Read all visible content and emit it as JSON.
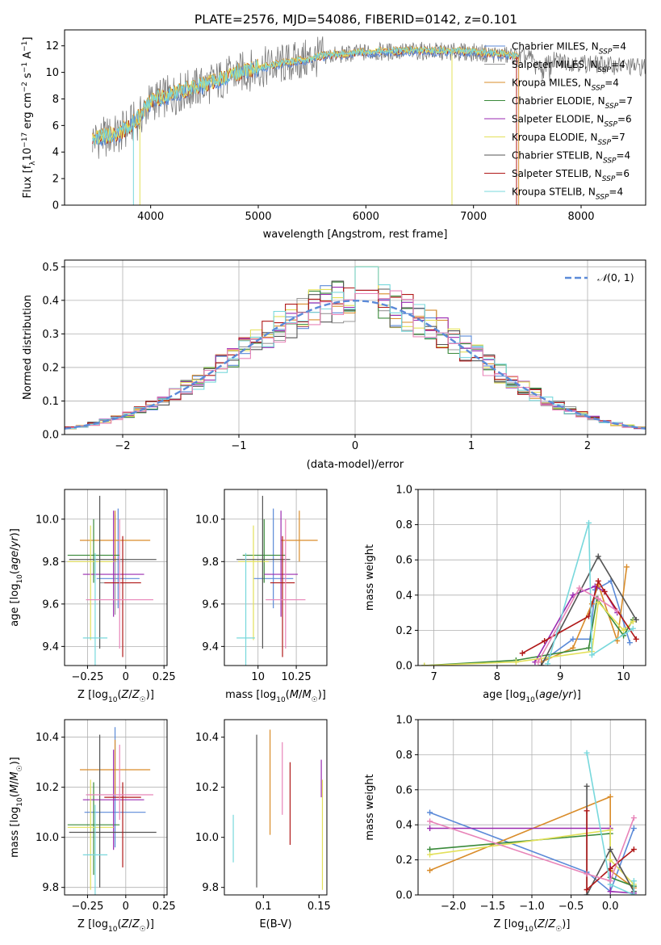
{
  "title": "PLATE=2576, MJD=54086, FIBERID=0142, z=0.101",
  "colors": {
    "Chabrier MILES": "#5b8ad8",
    "Salpeter MILES": "#9a9a9a",
    "Kroupa MILES": "#d98c2a",
    "Chabrier ELODIE": "#3a8a3a",
    "Salpeter ELODIE": "#9a2ab0",
    "Kroupa ELODIE": "#e3e05a",
    "Chabrier STELIB": "#555555",
    "Salpeter STELIB": "#b01818",
    "Kroupa STELIB": "#78d8dc",
    "normal_curve": "#5b8ad8",
    "grid": "#b0b0b0"
  },
  "chart_data": [
    {
      "type": "line",
      "panel": "spectrum",
      "xlabel": "wavelength [Angstrom, rest frame]",
      "ylabel": "Flux [f_λ 10^-17 erg cm^-2 s^-1 A^-1]",
      "xlim": [
        3200,
        8600
      ],
      "ylim": [
        0,
        13.2
      ],
      "xticks": [
        4000,
        5000,
        6000,
        7000,
        8000
      ],
      "yticks": [
        0,
        2,
        4,
        6,
        8,
        10,
        12
      ],
      "grid": false,
      "legend_position": "right",
      "legend": [
        {
          "name": "Chabrier MILES",
          "nssp": 4
        },
        {
          "name": "Salpeter MILES",
          "nssp": 4
        },
        {
          "name": "Kroupa MILES",
          "nssp": 4
        },
        {
          "name": "Chabrier ELODIE",
          "nssp": 7
        },
        {
          "name": "Salpeter ELODIE",
          "nssp": 6
        },
        {
          "name": "Kroupa ELODIE",
          "nssp": 7
        },
        {
          "name": "Chabrier STELIB",
          "nssp": 4
        },
        {
          "name": "Salpeter STELIB",
          "nssp": 6
        },
        {
          "name": "Kroupa STELIB",
          "nssp": 4
        }
      ],
      "continuum": [
        [
          3500,
          5.0
        ],
        [
          3700,
          5.3
        ],
        [
          3900,
          6.6
        ],
        [
          4000,
          7.8
        ],
        [
          4200,
          8.3
        ],
        [
          4500,
          9.0
        ],
        [
          4800,
          9.9
        ],
        [
          5000,
          10.3
        ],
        [
          5300,
          10.7
        ],
        [
          5600,
          11.2
        ],
        [
          6000,
          11.5
        ],
        [
          6500,
          11.6
        ],
        [
          7000,
          11.5
        ],
        [
          7400,
          11.2
        ],
        [
          7700,
          10.9
        ],
        [
          8000,
          10.7
        ],
        [
          8300,
          10.5
        ],
        [
          8600,
          10.4
        ]
      ],
      "data_range": [
        3460,
        8600
      ],
      "model_range": [
        3460,
        7420
      ]
    },
    {
      "type": "step",
      "panel": "residual_histogram",
      "xlabel": "(data-model)/error",
      "ylabel": "Normed distribution",
      "xlim": [
        -2.5,
        2.5
      ],
      "ylim": [
        0,
        0.52
      ],
      "xticks": [
        -2,
        -1,
        0,
        1,
        2
      ],
      "yticks": [
        0.0,
        0.1,
        0.2,
        0.3,
        0.4,
        0.5
      ],
      "grid": true,
      "bin_width": 0.1,
      "legend_position": "top-right",
      "legend": [
        "N(0,1)"
      ],
      "peak_values": [
        0.42,
        0.43,
        0.5
      ]
    },
    {
      "type": "errorbar",
      "panel": "age_vs_Z",
      "xlabel": "Z [log10(Z/Z☉)]",
      "ylabel": "age [log10(age/yr)]",
      "xlim": [
        -0.4,
        0.27
      ],
      "ylim": [
        9.31,
        10.14
      ],
      "xticks": [
        -0.25,
        0.0,
        0.25
      ],
      "yticks": [
        9.4,
        9.6,
        9.8,
        10.0
      ],
      "grid": true,
      "points": [
        {
          "series": "Chabrier MILES",
          "x": -0.05,
          "xerr": [
            0.14,
            0.14
          ],
          "y": 9.72,
          "yerr": [
            0.14,
            0.33
          ]
        },
        {
          "series": "Salpeter MILES",
          "x": -0.07,
          "xerr": [
            0.1,
            0.1
          ],
          "y": 9.7,
          "yerr": [
            0.15,
            0.32
          ]
        },
        {
          "series": "Kroupa MILES",
          "x": -0.07,
          "xerr": [
            0.23,
            0.23
          ],
          "y": 9.9,
          "yerr": [
            0.1,
            0.14
          ]
        },
        {
          "series": "Chabrier ELODIE",
          "x": -0.21,
          "xerr": [
            0.17,
            0.17
          ],
          "y": 9.83,
          "yerr": [
            0.13,
            0.17
          ]
        },
        {
          "series": "Salpeter ELODIE",
          "x": -0.08,
          "xerr": [
            0.2,
            0.2
          ],
          "y": 9.74,
          "yerr": [
            0.2,
            0.3
          ]
        },
        {
          "series": "Kroupa ELODIE",
          "x": -0.23,
          "xerr": [
            0.15,
            0.15
          ],
          "y": 9.8,
          "yerr": [
            0.37,
            0.17
          ]
        },
        {
          "series": "Chabrier STELIB",
          "x": -0.17,
          "xerr": [
            0.2,
            0.37
          ],
          "y": 9.81,
          "yerr": [
            0.42,
            0.3
          ]
        },
        {
          "series": "Salpeter STELIB",
          "x": -0.02,
          "xerr": [
            0.12,
            0.12
          ],
          "y": 9.7,
          "yerr": [
            0.35,
            0.22
          ]
        },
        {
          "series": "Kroupa STELIB",
          "x": -0.2,
          "xerr": [
            0.08,
            0.08
          ],
          "y": 9.44,
          "yerr": [
            0.16,
            0.4
          ]
        },
        {
          "series": "Salpeter pink",
          "x": -0.04,
          "xerr": [
            0.22,
            0.22
          ],
          "y": 9.62,
          "yerr": [
            0.23,
            0.38
          ]
        }
      ]
    },
    {
      "type": "errorbar",
      "panel": "age_vs_mass",
      "xlabel": "mass [log10(M/M☉)]",
      "ylabel": "",
      "xlim": [
        9.78,
        10.45
      ],
      "ylim": [
        9.31,
        10.14
      ],
      "xticks": [
        10.0,
        10.25
      ],
      "yticks": [
        9.4,
        9.6,
        9.8,
        10.0
      ],
      "grid": true,
      "points": [
        {
          "series": "Chabrier MILES",
          "x": 10.1,
          "xerr": [
            0.13,
            0.13
          ],
          "y": 9.72,
          "yerr": [
            0.14,
            0.33
          ]
        },
        {
          "series": "Kroupa MILES",
          "x": 10.27,
          "xerr": [
            0.12,
            0.12
          ],
          "y": 9.9,
          "yerr": [
            0.1,
            0.14
          ]
        },
        {
          "series": "Chabrier ELODIE",
          "x": 10.04,
          "xerr": [
            0.14,
            0.14
          ],
          "y": 9.83,
          "yerr": [
            0.13,
            0.17
          ]
        },
        {
          "series": "Salpeter ELODIE",
          "x": 10.15,
          "xerr": [
            0.11,
            0.11
          ],
          "y": 9.74,
          "yerr": [
            0.2,
            0.3
          ]
        },
        {
          "series": "Kroupa ELODIE",
          "x": 9.97,
          "xerr": [
            0.1,
            0.1
          ],
          "y": 9.8,
          "yerr": [
            0.37,
            0.17
          ]
        },
        {
          "series": "Chabrier STELIB",
          "x": 10.03,
          "xerr": [
            0.17,
            0.18
          ],
          "y": 9.81,
          "yerr": [
            0.42,
            0.3
          ]
        },
        {
          "series": "Salpeter STELIB",
          "x": 10.16,
          "xerr": [
            0.08,
            0.08
          ],
          "y": 9.7,
          "yerr": [
            0.35,
            0.22
          ]
        },
        {
          "series": "Kroupa STELIB",
          "x": 9.92,
          "xerr": [
            0.06,
            0.06
          ],
          "y": 9.44,
          "yerr": [
            0.16,
            0.4
          ]
        },
        {
          "series": "Salpeter pink",
          "x": 10.18,
          "xerr": [
            0.13,
            0.13
          ],
          "y": 9.62,
          "yerr": [
            0.23,
            0.38
          ]
        }
      ]
    },
    {
      "type": "line",
      "panel": "massweight_vs_age",
      "xlabel": "age [log10(age/yr)]",
      "ylabel": "mass weight",
      "xlim": [
        6.75,
        10.35
      ],
      "ylim": [
        0,
        1
      ],
      "xticks": [
        7,
        8,
        9,
        10
      ],
      "yticks": [
        0.0,
        0.2,
        0.4,
        0.6,
        0.8,
        1.0
      ],
      "grid": true,
      "series": [
        {
          "name": "Chabrier MILES",
          "x": [
            8.7,
            9.2,
            9.47,
            9.55,
            9.8,
            10.1
          ],
          "y": [
            0.02,
            0.15,
            0.15,
            0.43,
            0.48,
            0.13
          ]
        },
        {
          "name": "Kroupa MILES",
          "x": [
            8.7,
            9.2,
            9.5,
            9.6,
            9.9,
            10.05
          ],
          "y": [
            0.02,
            0.1,
            0.35,
            0.46,
            0.14,
            0.56
          ]
        },
        {
          "name": "Chabrier ELODIE",
          "x": [
            6.85,
            8.3,
            9.45,
            9.58,
            10.0,
            10.15
          ],
          "y": [
            0.0,
            0.03,
            0.1,
            0.38,
            0.17,
            0.26
          ]
        },
        {
          "name": "Salpeter ELODIE",
          "x": [
            8.6,
            9.2,
            9.55,
            9.7,
            9.9
          ],
          "y": [
            0.02,
            0.4,
            0.45,
            0.42,
            0.3
          ]
        },
        {
          "name": "Kroupa ELODIE",
          "x": [
            6.85,
            8.3,
            9.5,
            9.6,
            10.0,
            10.15
          ],
          "y": [
            0.0,
            0.02,
            0.08,
            0.36,
            0.2,
            0.25
          ]
        },
        {
          "name": "Chabrier STELIB",
          "x": [
            8.7,
            9.6,
            10.2
          ],
          "y": [
            0.0,
            0.62,
            0.26
          ]
        },
        {
          "name": "Salpeter STELIB",
          "x": [
            8.4,
            8.75,
            9.45,
            9.6,
            9.7,
            10.2
          ],
          "y": [
            0.07,
            0.14,
            0.28,
            0.48,
            0.42,
            0.15
          ]
        },
        {
          "name": "Kroupa STELIB",
          "x": [
            8.8,
            9.45,
            9.5,
            10.15
          ],
          "y": [
            0.01,
            0.81,
            0.06,
            0.21
          ]
        },
        {
          "name": "Salpeter pink",
          "x": [
            8.65,
            9.3,
            9.6,
            9.9
          ],
          "y": [
            0.02,
            0.44,
            0.38,
            0.31
          ]
        }
      ]
    },
    {
      "type": "errorbar",
      "panel": "mass_vs_Z",
      "xlabel": "Z [log10(Z/Z☉)]",
      "ylabel": "mass [log10(M/M☉)]",
      "xlim": [
        -0.4,
        0.27
      ],
      "ylim": [
        9.77,
        10.47
      ],
      "xticks": [
        -0.25,
        0.0,
        0.25
      ],
      "yticks": [
        9.8,
        10.0,
        10.2,
        10.4
      ],
      "grid": true,
      "points": [
        {
          "series": "Chabrier MILES",
          "x": -0.07,
          "xerr": [
            0.2,
            0.2
          ],
          "y": 10.1,
          "yerr": [
            0.14,
            0.34
          ]
        },
        {
          "series": "Kroupa MILES",
          "x": -0.07,
          "xerr": [
            0.23,
            0.23
          ],
          "y": 10.27,
          "yerr": [
            0.1,
            0.12
          ]
        },
        {
          "series": "Chabrier ELODIE",
          "x": -0.21,
          "xerr": [
            0.17,
            0.17
          ],
          "y": 10.05,
          "yerr": [
            0.2,
            0.17
          ]
        },
        {
          "series": "Salpeter ELODIE",
          "x": -0.08,
          "xerr": [
            0.2,
            0.2
          ],
          "y": 10.15,
          "yerr": [
            0.2,
            0.2
          ]
        },
        {
          "series": "Kroupa ELODIE",
          "x": -0.23,
          "xerr": [
            0.15,
            0.15
          ],
          "y": 10.04,
          "yerr": [
            0.25,
            0.19
          ]
        },
        {
          "series": "Chabrier STELIB",
          "x": -0.17,
          "xerr": [
            0.2,
            0.37
          ],
          "y": 10.02,
          "yerr": [
            0.22,
            0.39
          ]
        },
        {
          "series": "Salpeter STELIB",
          "x": -0.02,
          "xerr": [
            0.12,
            0.12
          ],
          "y": 10.16,
          "yerr": [
            0.28,
            0.06
          ]
        },
        {
          "series": "Kroupa STELIB",
          "x": -0.2,
          "xerr": [
            0.08,
            0.08
          ],
          "y": 9.93,
          "yerr": [
            0.16,
            0.2
          ]
        },
        {
          "series": "Salpeter pink",
          "x": -0.04,
          "xerr": [
            0.22,
            0.22
          ],
          "y": 10.17,
          "yerr": [
            0.1,
            0.2
          ]
        }
      ]
    },
    {
      "type": "errorbar",
      "panel": "mass_vs_EBV",
      "xlabel": "E(B-V)",
      "ylabel": "",
      "xlim": [
        0.065,
        0.157
      ],
      "ylim": [
        9.77,
        10.47
      ],
      "xticks": [
        0.1,
        0.15
      ],
      "yticks": [
        9.8,
        10.0,
        10.2,
        10.4
      ],
      "grid": false,
      "points": [
        {
          "series": "Kroupa STELIB",
          "x": 0.073,
          "y": 10.0,
          "yerr": [
            0.1,
            0.09
          ]
        },
        {
          "series": "Chabrier STELIB",
          "x": 0.094,
          "y": 10.02,
          "yerr": [
            0.22,
            0.39
          ]
        },
        {
          "series": "Kroupa MILES",
          "x": 0.106,
          "y": 10.22,
          "yerr": [
            0.21,
            0.21
          ]
        },
        {
          "series": "Salpeter pink",
          "x": 0.117,
          "y": 10.23,
          "yerr": [
            0.14,
            0.15
          ]
        },
        {
          "series": "Salpeter STELIB",
          "x": 0.124,
          "y": 10.13,
          "yerr": [
            0.16,
            0.17
          ]
        },
        {
          "series": "Salpeter ELODIE",
          "x": 0.152,
          "y": 10.22,
          "yerr": [
            0.06,
            0.09
          ]
        },
        {
          "series": "Kroupa ELODIE",
          "x": 0.153,
          "y": 10.0,
          "yerr": [
            0.21,
            0.23
          ]
        }
      ]
    },
    {
      "type": "line",
      "panel": "massweight_vs_Z",
      "xlabel": "Z [log10(Z/Z☉)]",
      "ylabel": "mass weight",
      "xlim": [
        -2.45,
        0.45
      ],
      "ylim": [
        0,
        1
      ],
      "xticks": [
        -2.0,
        -1.5,
        -1.0,
        -0.5,
        0.0
      ],
      "yticks": [
        0.0,
        0.2,
        0.4,
        0.6,
        0.8,
        1.0
      ],
      "grid": true,
      "series": [
        {
          "name": "Chabrier MILES",
          "x": [
            -2.3,
            -0.3,
            0.0,
            0.3
          ],
          "y": [
            0.47,
            0.13,
            0.02,
            0.38
          ]
        },
        {
          "name": "Kroupa MILES",
          "x": [
            -2.3,
            0.0,
            0.0,
            0.3
          ],
          "y": [
            0.14,
            0.56,
            0.14,
            0.04
          ]
        },
        {
          "name": "Chabrier ELODIE",
          "x": [
            -2.3,
            0.0,
            0.0,
            0.3
          ],
          "y": [
            0.26,
            0.35,
            0.1,
            0.05
          ]
        },
        {
          "name": "Salpeter ELODIE",
          "x": [
            -2.3,
            0.0,
            0.0,
            0.3
          ],
          "y": [
            0.38,
            0.38,
            0.02,
            0.01
          ]
        },
        {
          "name": "Kroupa ELODIE",
          "x": [
            -2.3,
            0.0,
            0.0,
            0.3
          ],
          "y": [
            0.23,
            0.37,
            0.2,
            0.06
          ]
        },
        {
          "name": "Chabrier STELIB",
          "x": [
            -0.3,
            -0.3,
            0.0,
            0.3
          ],
          "y": [
            0.62,
            0.0,
            0.26,
            0.02
          ]
        },
        {
          "name": "Salpeter STELIB",
          "x": [
            -0.3,
            -0.3,
            0.0,
            0.3
          ],
          "y": [
            0.48,
            0.03,
            0.15,
            0.26
          ]
        },
        {
          "name": "Kroupa STELIB",
          "x": [
            -0.3,
            0.0,
            0.3,
            0.3
          ],
          "y": [
            0.81,
            0.06,
            0.0,
            0.08
          ]
        },
        {
          "name": "Salpeter pink",
          "x": [
            -2.3,
            -0.3,
            0.0,
            0.3
          ],
          "y": [
            0.42,
            0.12,
            0.08,
            0.44
          ]
        }
      ]
    }
  ]
}
